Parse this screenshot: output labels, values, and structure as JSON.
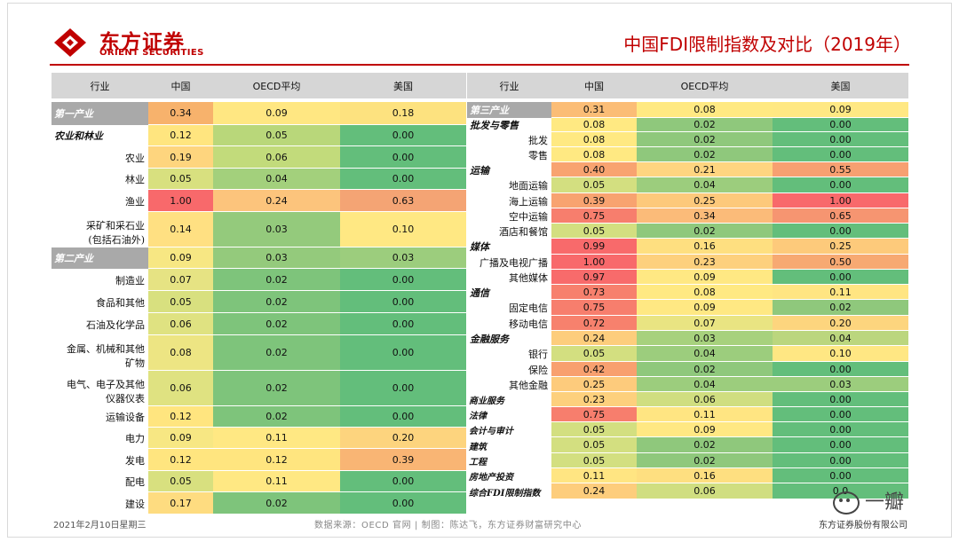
{
  "header": {
    "logo_cn": "东方证券",
    "logo_en": "ORIENT SECURITIES",
    "title": "中国FDI限制指数及对比（2019年）",
    "brand_color": "#c00000"
  },
  "left_table": {
    "headers": [
      "行业",
      "中国",
      "OECD平均",
      "美国"
    ],
    "rows": [
      {
        "label": "第一产业",
        "kind": "cat_white",
        "vals": [
          "0.34",
          "0.09",
          "0.18"
        ],
        "colors": [
          "#f7b26c",
          "#ffe782",
          "#fde27f"
        ]
      },
      {
        "label": "农业和林业",
        "kind": "cat",
        "vals": [
          "0.12",
          "0.05",
          "0.00"
        ],
        "colors": [
          "#ffe57f",
          "#b9d77a",
          "#63be7b"
        ]
      },
      {
        "label": "农业",
        "kind": "sub",
        "vals": [
          "0.19",
          "0.06",
          "0.00"
        ],
        "colors": [
          "#fed57e",
          "#c2db7b",
          "#63be7b"
        ]
      },
      {
        "label": "林业",
        "kind": "sub",
        "vals": [
          "0.05",
          "0.04",
          "0.00"
        ],
        "colors": [
          "#d8e07f",
          "#a3d07c",
          "#63be7b"
        ]
      },
      {
        "label": "渔业",
        "kind": "sub",
        "vals": [
          "1.00",
          "0.24",
          "0.63"
        ],
        "colors": [
          "#f8696b",
          "#fcc47c",
          "#f4a474"
        ]
      },
      {
        "label": "采矿和采石业|(包括石油外)",
        "kind": "sub2",
        "vals": [
          "0.14",
          "0.03",
          "0.10"
        ],
        "colors": [
          "#ffe082",
          "#94ca7c",
          "#ffe883"
        ]
      },
      {
        "label": "第二产业",
        "kind": "cat_white",
        "vals": [
          "0.09",
          "0.03",
          "0.03"
        ],
        "colors": [
          "#f7e783",
          "#94ca7c",
          "#9ccd7d"
        ]
      },
      {
        "label": "制造业",
        "kind": "sub",
        "vals": [
          "0.07",
          "0.02",
          "0.00"
        ],
        "colors": [
          "#e6e383",
          "#7ec47b",
          "#63be7b"
        ]
      },
      {
        "label": "食品和其他",
        "kind": "sub",
        "vals": [
          "0.05",
          "0.02",
          "0.00"
        ],
        "colors": [
          "#d8e07f",
          "#7ec47b",
          "#63be7b"
        ]
      },
      {
        "label": "石油及化学品",
        "kind": "sub",
        "vals": [
          "0.06",
          "0.02",
          "0.00"
        ],
        "colors": [
          "#dfe281",
          "#7ec47b",
          "#63be7b"
        ]
      },
      {
        "label": "金属、机械和其他|矿物",
        "kind": "sub2",
        "vals": [
          "0.08",
          "0.02",
          "0.00"
        ],
        "colors": [
          "#ede583",
          "#7ec47b",
          "#63be7b"
        ]
      },
      {
        "label": "电气、电子及其他|仪器仪表",
        "kind": "sub2",
        "vals": [
          "0.06",
          "0.02",
          "0.00"
        ],
        "colors": [
          "#dfe281",
          "#7ec47b",
          "#63be7b"
        ]
      },
      {
        "label": "运输设备",
        "kind": "sub",
        "vals": [
          "0.12",
          "0.02",
          "0.00"
        ],
        "colors": [
          "#ffe57f",
          "#7ec47b",
          "#63be7b"
        ]
      },
      {
        "label": "电力",
        "kind": "sub",
        "vals": [
          "0.09",
          "0.11",
          "0.20"
        ],
        "colors": [
          "#f7e783",
          "#ffe883",
          "#fdd47e"
        ]
      },
      {
        "label": "发电",
        "kind": "sub",
        "vals": [
          "0.12",
          "0.12",
          "0.39"
        ],
        "colors": [
          "#ffe57f",
          "#ffe57f",
          "#f9b574"
        ]
      },
      {
        "label": "配电",
        "kind": "sub",
        "vals": [
          "0.05",
          "0.11",
          "0.00"
        ],
        "colors": [
          "#d8e07f",
          "#ffe883",
          "#63be7b"
        ]
      },
      {
        "label": "建设",
        "kind": "sub",
        "vals": [
          "0.17",
          "0.02",
          "0.00"
        ],
        "colors": [
          "#fedc80",
          "#7ec47b",
          "#63be7b"
        ]
      }
    ]
  },
  "right_table": {
    "headers": [
      "行业",
      "中国",
      "OECD平均",
      "美国"
    ],
    "rows": [
      {
        "label": "第三产业",
        "kind": "cat_white",
        "vals": [
          "0.31",
          "0.08",
          "0.09"
        ],
        "colors": [
          "#fbbd76",
          "#ffe982",
          "#ffe883"
        ]
      },
      {
        "label": "批发与零售",
        "kind": "cat",
        "vals": [
          "0.08",
          "0.02",
          "0.00"
        ],
        "colors": [
          "#ffe982",
          "#8fc87c",
          "#63be7b"
        ]
      },
      {
        "label": "批发",
        "kind": "sub",
        "vals": [
          "0.08",
          "0.02",
          "0.00"
        ],
        "colors": [
          "#ffe982",
          "#8fc87c",
          "#63be7b"
        ]
      },
      {
        "label": "零售",
        "kind": "sub",
        "vals": [
          "0.08",
          "0.02",
          "0.00"
        ],
        "colors": [
          "#ffe982",
          "#8fc87c",
          "#63be7b"
        ]
      },
      {
        "label": "运输",
        "kind": "cat",
        "vals": [
          "0.40",
          "0.21",
          "0.55"
        ],
        "colors": [
          "#f8a370",
          "#ffd580",
          "#f7a071"
        ]
      },
      {
        "label": "地面运输",
        "kind": "sub",
        "vals": [
          "0.05",
          "0.04",
          "0.00"
        ],
        "colors": [
          "#d3df80",
          "#9ccd7d",
          "#63be7b"
        ]
      },
      {
        "label": "海上运输",
        "kind": "sub",
        "vals": [
          "0.39",
          "0.25",
          "1.00"
        ],
        "colors": [
          "#f8a370",
          "#fdc97b",
          "#f8696b"
        ]
      },
      {
        "label": "空中运输",
        "kind": "sub",
        "vals": [
          "0.75",
          "0.34",
          "0.65"
        ],
        "colors": [
          "#f77e6d",
          "#fbbb79",
          "#f69571"
        ]
      },
      {
        "label": "酒店和餐馆",
        "kind": "sub",
        "vals": [
          "0.05",
          "0.02",
          "0.00"
        ],
        "colors": [
          "#d3df80",
          "#8fc87c",
          "#63be7b"
        ]
      },
      {
        "label": "媒体",
        "kind": "cat",
        "vals": [
          "0.99",
          "0.16",
          "0.25"
        ],
        "colors": [
          "#f86a6b",
          "#fedf80",
          "#fdca7b"
        ]
      },
      {
        "label": "广播及电视广播",
        "kind": "sub",
        "vals": [
          "1.00",
          "0.23",
          "0.50"
        ],
        "colors": [
          "#f8696b",
          "#fdd07d",
          "#f7a972"
        ]
      },
      {
        "label": "其他媒体",
        "kind": "sub",
        "vals": [
          "0.97",
          "0.09",
          "0.00"
        ],
        "colors": [
          "#f86b6b",
          "#ffe883",
          "#63be7b"
        ]
      },
      {
        "label": "通信",
        "kind": "cat",
        "vals": [
          "0.73",
          "0.08",
          "0.11"
        ],
        "colors": [
          "#f7806d",
          "#ffe982",
          "#ffe582"
        ]
      },
      {
        "label": "固定电信",
        "kind": "sub",
        "vals": [
          "0.75",
          "0.09",
          "0.02"
        ],
        "colors": [
          "#f77e6d",
          "#ffe883",
          "#8fc87c"
        ]
      },
      {
        "label": "移动电信",
        "kind": "sub",
        "vals": [
          "0.72",
          "0.07",
          "0.20"
        ],
        "colors": [
          "#f7816d",
          "#e9e482",
          "#fdd57e"
        ]
      },
      {
        "label": "金融服务",
        "kind": "cat",
        "vals": [
          "0.24",
          "0.03",
          "0.04"
        ],
        "colors": [
          "#fdcd7c",
          "#a7d17d",
          "#bbd67e"
        ]
      },
      {
        "label": "银行",
        "kind": "sub",
        "vals": [
          "0.05",
          "0.04",
          "0.10"
        ],
        "colors": [
          "#d3df80",
          "#9ccd7d",
          "#ffe783"
        ]
      },
      {
        "label": "保险",
        "kind": "sub",
        "vals": [
          "0.42",
          "0.02",
          "0.00"
        ],
        "colors": [
          "#f8a06f",
          "#8fc87c",
          "#63be7b"
        ]
      },
      {
        "label": "其他金融",
        "kind": "sub",
        "vals": [
          "0.25",
          "0.04",
          "0.03"
        ],
        "colors": [
          "#fdcb7c",
          "#9ccd7d",
          "#9ccd7d"
        ]
      },
      {
        "label": "商业服务",
        "kind": "cat_inline",
        "vals": [
          "0.23",
          "0.06",
          "0.00"
        ],
        "colors": [
          "#fdd07d",
          "#d0de80",
          "#63be7b"
        ]
      },
      {
        "label": "法律",
        "kind": "cat_inline",
        "vals": [
          "0.75",
          "0.11",
          "0.00"
        ],
        "colors": [
          "#f77e6d",
          "#ffe582",
          "#63be7b"
        ]
      },
      {
        "label": "会计与审计",
        "kind": "cat_inline",
        "vals": [
          "0.05",
          "0.09",
          "0.00"
        ],
        "colors": [
          "#d3df80",
          "#ffe883",
          "#63be7b"
        ]
      },
      {
        "label": "建筑",
        "kind": "cat_inline",
        "vals": [
          "0.05",
          "0.02",
          "0.00"
        ],
        "colors": [
          "#d3df80",
          "#8fc87c",
          "#63be7b"
        ]
      },
      {
        "label": "工程",
        "kind": "cat_inline",
        "vals": [
          "0.05",
          "0.02",
          "0.00"
        ],
        "colors": [
          "#d3df80",
          "#8fc87c",
          "#63be7b"
        ]
      },
      {
        "label": "房地产投资",
        "kind": "cat_inline",
        "vals": [
          "0.11",
          "0.16",
          "0.00"
        ],
        "colors": [
          "#ffe582",
          "#fedf80",
          "#63be7b"
        ]
      },
      {
        "label": "综合FDI限制指数",
        "kind": "cat_inline",
        "vals": [
          "0.24",
          "0.06",
          "0.0"
        ],
        "colors": [
          "#fdcd7c",
          "#d0de80",
          "#63be7b"
        ]
      }
    ]
  },
  "footer": {
    "date": "2021年2月10日星期三",
    "source": "数据来源：OECD 官网 | 制图：陈达飞，东方证券财富研究中心",
    "company": "东方证券股份有限公司"
  },
  "watermark": {
    "text": "一瓣",
    "icon": "wechat-icon"
  }
}
